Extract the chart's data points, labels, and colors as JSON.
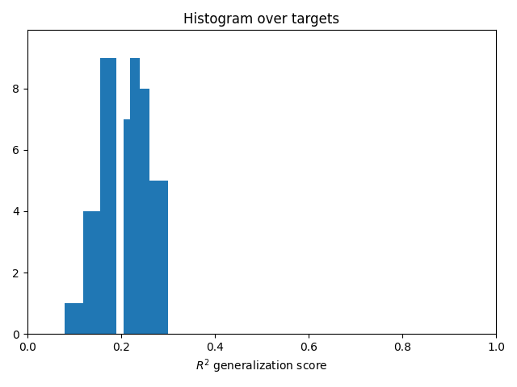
{
  "title": "Histogram over targets",
  "xlabel": "$R^2$ generalization score",
  "bar_color": "#2077b4",
  "xlim": [
    0.0,
    1.0
  ],
  "ylim": [
    0,
    9.9
  ],
  "counts": [
    1,
    4,
    9,
    0,
    7,
    9,
    8,
    5
  ],
  "bin_edges": [
    0.08,
    0.12,
    0.155,
    0.19,
    0.205,
    0.22,
    0.24,
    0.26,
    0.3
  ],
  "xticks": [
    0.0,
    0.2,
    0.4,
    0.6,
    0.8,
    1.0
  ],
  "figsize": [
    6.4,
    4.8
  ],
  "dpi": 100
}
